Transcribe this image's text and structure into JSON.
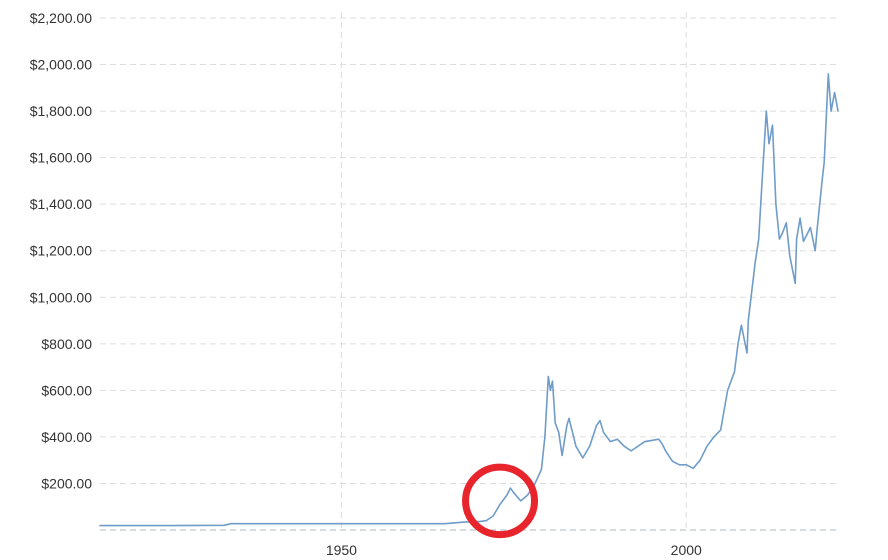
{
  "chart_data": {
    "type": "line",
    "title": "",
    "xlabel": "",
    "ylabel": "",
    "xlim": [
      1915,
      2022
    ],
    "ylim": [
      0,
      2200
    ],
    "y_ticks": [
      {
        "value": 200,
        "label": "$200.00"
      },
      {
        "value": 400,
        "label": "$400.00"
      },
      {
        "value": 600,
        "label": "$600.00"
      },
      {
        "value": 800,
        "label": "$800.00"
      },
      {
        "value": 1000,
        "label": "$1,000.00"
      },
      {
        "value": 1200,
        "label": "$1,200.00"
      },
      {
        "value": 1400,
        "label": "$1,400.00"
      },
      {
        "value": 1600,
        "label": "$1,600.00"
      },
      {
        "value": 1800,
        "label": "$1,800.00"
      },
      {
        "value": 2000,
        "label": "$2,000.00"
      },
      {
        "value": 2200,
        "label": "$2,200.00"
      }
    ],
    "x_ticks": [
      {
        "value": 1950,
        "label": "1950"
      },
      {
        "value": 2000,
        "label": "2000"
      }
    ],
    "grid": true,
    "legend": "none",
    "line_color": "#6f9cc8",
    "highlight": {
      "shape": "circle",
      "color": "#e8242c",
      "x_range": [
        1968,
        1978
      ],
      "y_range": [
        -20,
        270
      ]
    },
    "series": [
      {
        "values": [
          [
            1915,
            19
          ],
          [
            1925,
            19
          ],
          [
            1933,
            20
          ],
          [
            1934,
            27
          ],
          [
            1940,
            27
          ],
          [
            1950,
            27
          ],
          [
            1960,
            27
          ],
          [
            1965,
            27
          ],
          [
            1968,
            35
          ],
          [
            1970,
            36
          ],
          [
            1971,
            40
          ],
          [
            1972,
            60
          ],
          [
            1973,
            110
          ],
          [
            1974,
            150
          ],
          [
            1974.5,
            180
          ],
          [
            1975,
            160
          ],
          [
            1976,
            125
          ],
          [
            1976.6,
            140
          ],
          [
            1977,
            150
          ],
          [
            1978,
            195
          ],
          [
            1979,
            260
          ],
          [
            1979.5,
            400
          ],
          [
            1980,
            660
          ],
          [
            1980.3,
            600
          ],
          [
            1980.6,
            640
          ],
          [
            1981,
            460
          ],
          [
            1981.5,
            420
          ],
          [
            1982,
            320
          ],
          [
            1982.7,
            450
          ],
          [
            1983,
            480
          ],
          [
            1983.5,
            420
          ],
          [
            1984,
            360
          ],
          [
            1985,
            310
          ],
          [
            1986,
            360
          ],
          [
            1987,
            450
          ],
          [
            1987.5,
            470
          ],
          [
            1988,
            420
          ],
          [
            1989,
            380
          ],
          [
            1990,
            390
          ],
          [
            1991,
            360
          ],
          [
            1992,
            340
          ],
          [
            1993,
            360
          ],
          [
            1994,
            380
          ],
          [
            1995,
            385
          ],
          [
            1996,
            390
          ],
          [
            1996.5,
            370
          ],
          [
            1997,
            340
          ],
          [
            1998,
            295
          ],
          [
            1999,
            280
          ],
          [
            2000,
            280
          ],
          [
            2001,
            265
          ],
          [
            2002,
            300
          ],
          [
            2003,
            360
          ],
          [
            2004,
            400
          ],
          [
            2005,
            430
          ],
          [
            2006,
            600
          ],
          [
            2007,
            680
          ],
          [
            2007.5,
            800
          ],
          [
            2008,
            880
          ],
          [
            2008.8,
            760
          ],
          [
            2009,
            900
          ],
          [
            2010,
            1150
          ],
          [
            2010.5,
            1250
          ],
          [
            2011,
            1500
          ],
          [
            2011.6,
            1800
          ],
          [
            2012,
            1660
          ],
          [
            2012.5,
            1740
          ],
          [
            2013,
            1400
          ],
          [
            2013.5,
            1250
          ],
          [
            2014,
            1280
          ],
          [
            2014.5,
            1320
          ],
          [
            2015,
            1180
          ],
          [
            2015.8,
            1060
          ],
          [
            2016,
            1250
          ],
          [
            2016.5,
            1340
          ],
          [
            2017,
            1240
          ],
          [
            2018,
            1300
          ],
          [
            2018.7,
            1200
          ],
          [
            2019,
            1300
          ],
          [
            2019.7,
            1500
          ],
          [
            2020,
            1580
          ],
          [
            2020.6,
            1960
          ],
          [
            2021,
            1800
          ],
          [
            2021.5,
            1880
          ],
          [
            2022,
            1800
          ]
        ]
      }
    ]
  }
}
